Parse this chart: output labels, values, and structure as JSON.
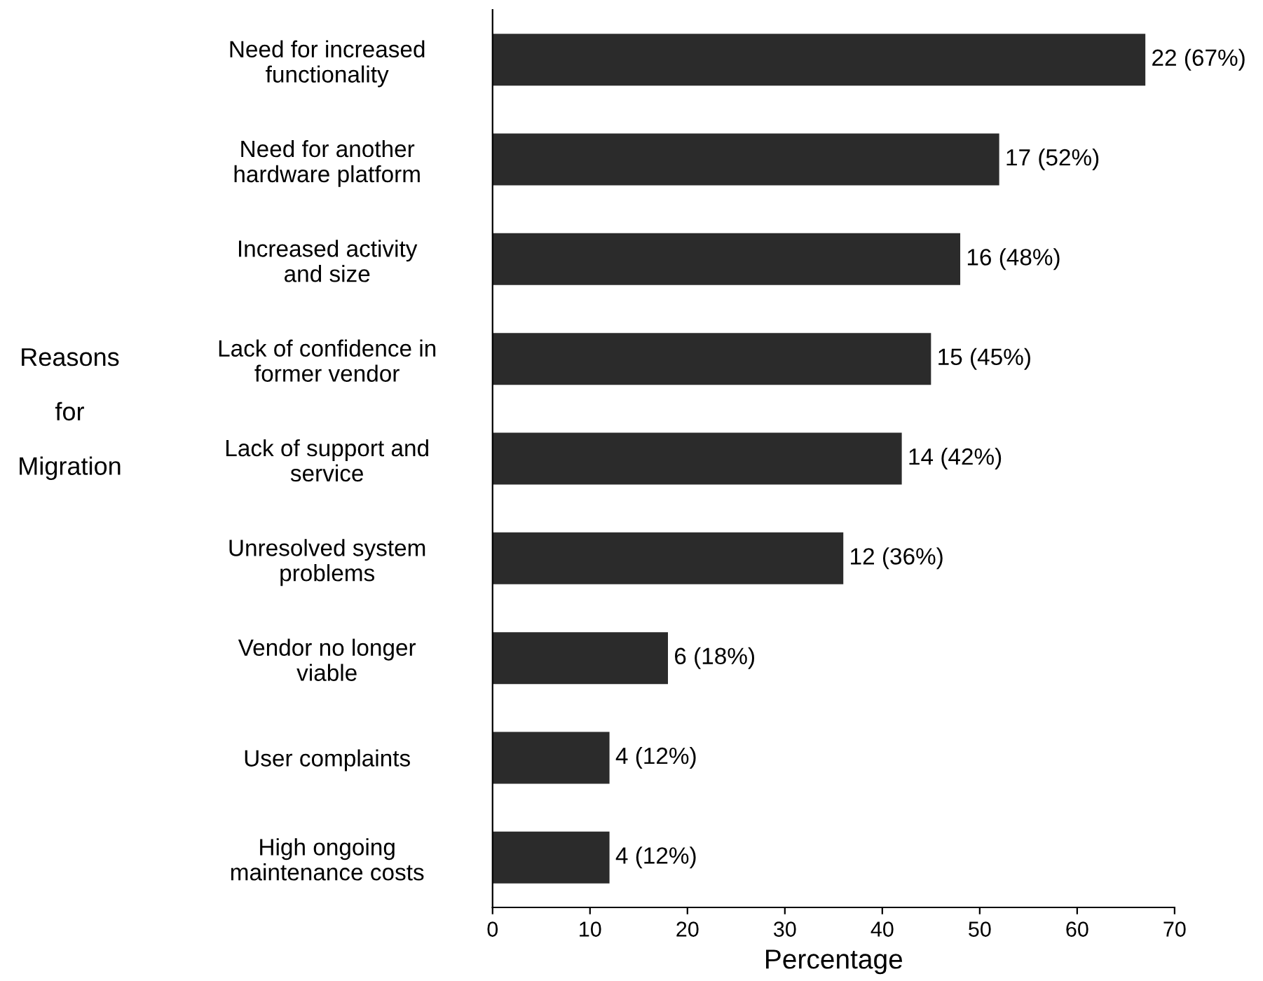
{
  "chart_data": {
    "type": "bar",
    "orientation": "horizontal",
    "ylabel": "Reasons\n\nfor\n\nMigration",
    "xlabel": "Percentage",
    "categories": [
      "Need for increased\nfunctionality",
      "Need for another\nhardware platform",
      "Increased activity\nand size",
      "Lack of confidence in\nformer vendor",
      "Lack of support and\nservice",
      "Unresolved system\nproblems",
      "Vendor no longer\nviable",
      "User complaints",
      "High ongoing\nmaintenance costs"
    ],
    "values": [
      67,
      52,
      48,
      45,
      42,
      36,
      18,
      12,
      12
    ],
    "value_labels": [
      "22 (67%)",
      "17 (52%)",
      "16 (48%)",
      "15 (45%)",
      "14 (42%)",
      "12 (36%)",
      "6 (18%)",
      "4 (12%)",
      "4 (12%)"
    ],
    "color": "#2b2b2b",
    "xlim": [
      0,
      70
    ],
    "xticks": [
      0,
      10,
      20,
      30,
      40,
      50,
      60,
      70
    ],
    "grid": false,
    "legend": false
  }
}
